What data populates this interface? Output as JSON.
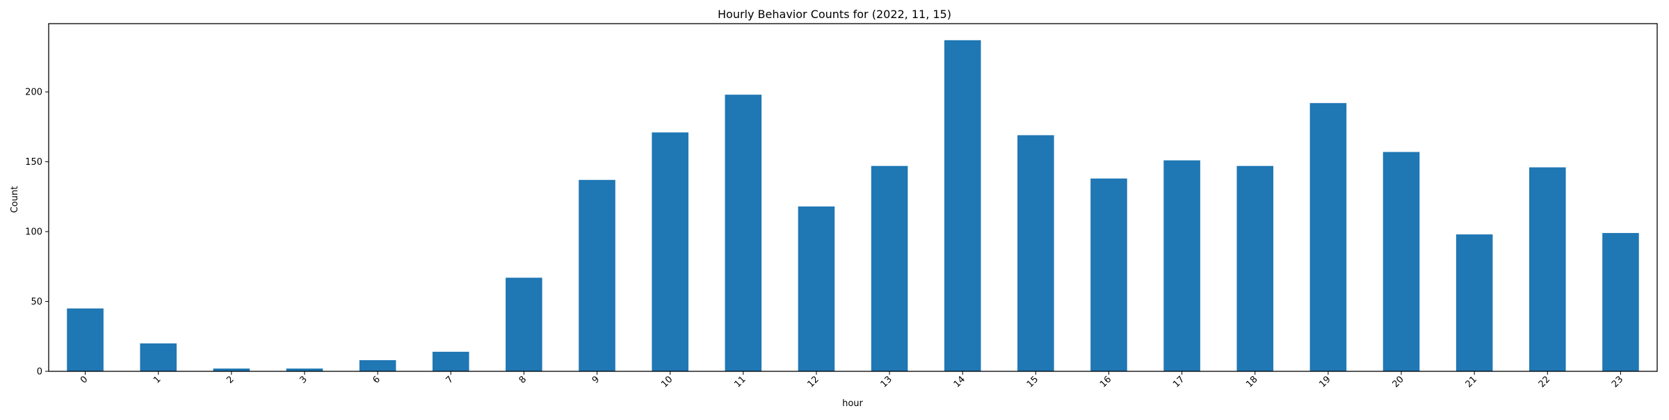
{
  "chart_data": {
    "type": "bar",
    "title": "Hourly Behavior Counts for (2022, 11, 15)",
    "xlabel": "hour",
    "ylabel": "Count",
    "categories": [
      "0",
      "1",
      "2",
      "3",
      "6",
      "7",
      "8",
      "9",
      "10",
      "11",
      "12",
      "13",
      "14",
      "15",
      "16",
      "17",
      "18",
      "19",
      "20",
      "21",
      "22",
      "23"
    ],
    "values": [
      45,
      20,
      2,
      2,
      8,
      14,
      67,
      137,
      171,
      198,
      118,
      147,
      237,
      169,
      138,
      151,
      147,
      192,
      157,
      98,
      146,
      99
    ],
    "ylim": [
      0,
      248.85
    ],
    "yticks": [
      0,
      50,
      100,
      150,
      200
    ],
    "grid": false,
    "legend": "none",
    "bar_color": "#1f77b4"
  }
}
